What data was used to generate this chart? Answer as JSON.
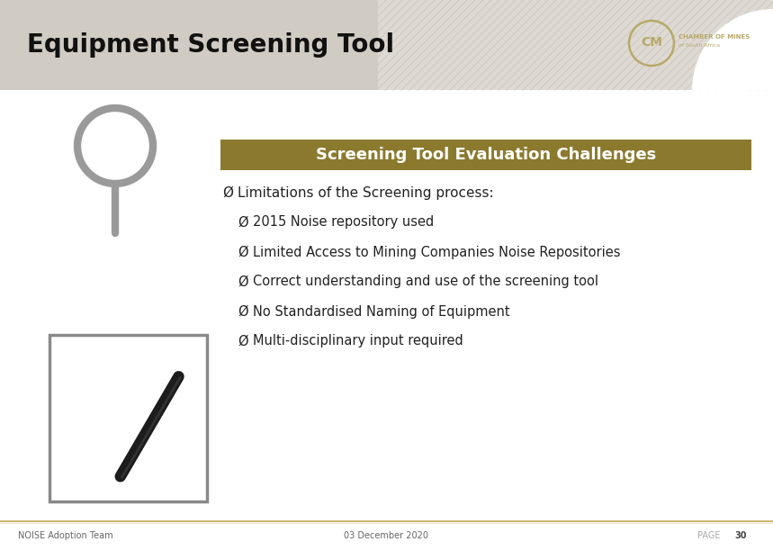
{
  "title": "Equipment Screening Tool",
  "header_bg_left": "#d0cbc3",
  "header_bg_right": "#dedad3",
  "hatch_line_color": "#c9c4bc",
  "white_bg": "#ffffff",
  "footer_line_color": "#c8b870",
  "footer_left": "NOISE Adoption Team",
  "footer_center": "03 December 2020",
  "footer_right_label": "PAGE",
  "footer_right_num": "30",
  "banner_text": "Screening Tool Evaluation Challenges",
  "banner_bg": "#8b7a2e",
  "banner_text_color": "#ffffff",
  "main_bullet": "Limitations of the Screening process:",
  "sub_bullets": [
    "2015 Noise repository used",
    "Limited Access to Mining Companies Noise Repositories",
    "Correct understanding and use of the screening tool",
    "No Standardised Naming of Equipment",
    "Multi-disciplinary input required"
  ],
  "logo_color": "#b8a96a",
  "magnifier_color": "#9a9a9a",
  "pen_color": "#1a1a1a",
  "frame_color": "#8a8a8a",
  "text_color": "#222222",
  "bullet_symbol": "Ø",
  "title_fontsize": 20,
  "banner_fontsize": 13,
  "main_bullet_fontsize": 11,
  "sub_bullet_fontsize": 10.5,
  "footer_fontsize": 7
}
